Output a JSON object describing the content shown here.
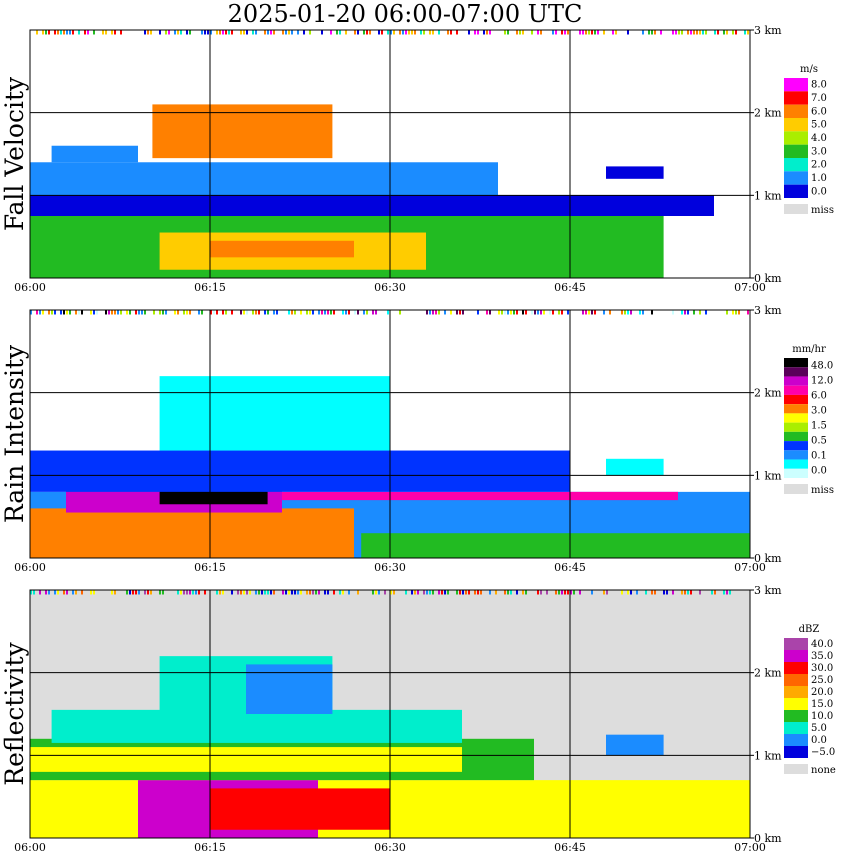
{
  "title": "2025-01-20   06:00-07:00 UTC",
  "chart_data": [
    {
      "type": "heatmap",
      "ylabel": "Fall Velocity",
      "x_ticks": [
        "06:00",
        "06:15",
        "06:30",
        "06:45",
        "07:00"
      ],
      "y_ticks": [
        "0 km",
        "1 km",
        "2 km",
        "3 km"
      ],
      "ylim": [
        0,
        3
      ],
      "background": "#ffffff",
      "legend": {
        "unit": "m/s",
        "labels": [
          "8.0",
          "7.0",
          "6.0",
          "5.0",
          "4.0",
          "3.0",
          "2.0",
          "1.0",
          "0.0"
        ],
        "colors": [
          "#ff00ff",
          "#ff0000",
          "#ff8000",
          "#ffcc00",
          "#aaee00",
          "#22bb22",
          "#00eecc",
          "#1b8cff",
          "#0000dd"
        ],
        "missing_label": "miss",
        "missing_color": "#dddddd"
      }
    },
    {
      "type": "heatmap",
      "ylabel": "Rain Intensity",
      "x_ticks": [
        "06:00",
        "06:15",
        "06:30",
        "06:45",
        "07:00"
      ],
      "y_ticks": [
        "0 km",
        "1 km",
        "2 km",
        "3 km"
      ],
      "ylim": [
        0,
        3
      ],
      "background": "#ffffff",
      "legend": {
        "unit": "mm/hr",
        "labels": [
          "48.0",
          "12.0",
          "6.0",
          "3.0",
          "1.5",
          "0.5",
          "0.1",
          "0.0"
        ],
        "colors": [
          "#000000",
          "#5a005a",
          "#cc00cc",
          "#ff00aa",
          "#ff0000",
          "#ff8000",
          "#ffff00",
          "#aaee00",
          "#22bb22",
          "#0033ff",
          "#1b8cff",
          "#00ffff",
          "#ccffff"
        ],
        "missing_label": "miss",
        "missing_color": "#dddddd"
      }
    },
    {
      "type": "heatmap",
      "ylabel": "Reflectivity",
      "x_ticks": [
        "06:00",
        "06:15",
        "06:30",
        "06:45",
        "07:00"
      ],
      "y_ticks": [
        "0 km",
        "1 km",
        "2 km",
        "3 km"
      ],
      "ylim": [
        0,
        3
      ],
      "background": "#dddddd",
      "legend": {
        "unit": "dBZ",
        "labels": [
          "40.0",
          "35.0",
          "30.0",
          "25.0",
          "20.0",
          "15.0",
          "10.0",
          "5.0",
          "0.0",
          "−5.0"
        ],
        "colors": [
          "#aa44aa",
          "#cc00cc",
          "#ff0000",
          "#ff6600",
          "#ffaa00",
          "#ffff00",
          "#22bb22",
          "#00eecc",
          "#1b8cff",
          "#0000dd"
        ],
        "missing_label": "none",
        "missing_color": "#dddddd"
      }
    }
  ]
}
